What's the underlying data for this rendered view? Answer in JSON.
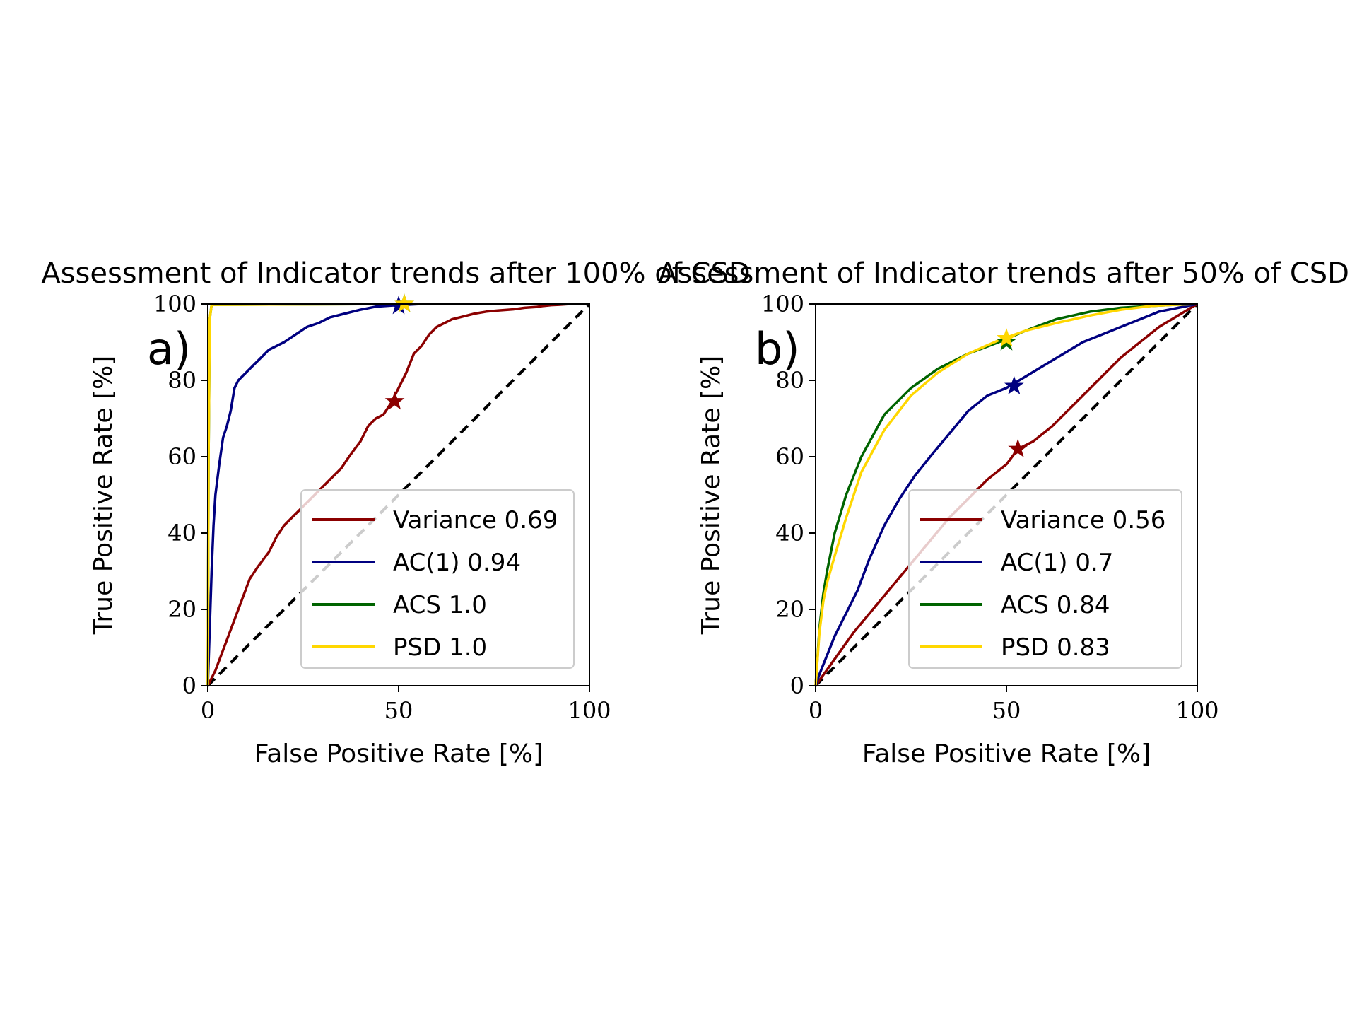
{
  "chart_data": [
    {
      "type": "line",
      "panel_label": "a)",
      "title": "Assessment of Indicator trends after 100% of CSD",
      "xlabel": "False Positive Rate [%]",
      "ylabel": "True Positive Rate [%]",
      "xlim": [
        0,
        100
      ],
      "ylim": [
        0,
        100
      ],
      "xticks": [
        "0",
        "50",
        "100"
      ],
      "yticks": [
        "0",
        "20",
        "40",
        "60",
        "80",
        "100"
      ],
      "grid": false,
      "legend_position": "lower-right",
      "diagonal": true,
      "series": [
        {
          "name": "Variance 0.69",
          "color": "#8b0000",
          "x": [
            0,
            2,
            5,
            8,
            11,
            13,
            16,
            18,
            20,
            22,
            24,
            25,
            27,
            30,
            33,
            35,
            37,
            40,
            42,
            44,
            46,
            48,
            50,
            52,
            54,
            56,
            58,
            60,
            62,
            64,
            66,
            68,
            70,
            73,
            76,
            80,
            83,
            86,
            88,
            90,
            92,
            95,
            100
          ],
          "y": [
            0,
            4,
            12,
            20,
            28,
            31,
            35,
            39,
            42,
            44,
            46,
            47,
            49,
            52,
            55,
            57,
            60,
            64,
            68,
            70,
            71,
            74,
            78,
            82,
            87,
            89,
            92,
            94,
            95,
            96,
            96.5,
            97,
            97.5,
            98,
            98.3,
            98.6,
            99,
            99.2,
            99.5,
            99.7,
            99.8,
            100,
            100
          ],
          "marker": {
            "x": 49,
            "y": 74.5
          }
        },
        {
          "name": "AC(1) 0.94",
          "color": "#000080",
          "x": [
            0,
            0.5,
            1,
            1.5,
            2,
            3,
            4,
            5,
            6,
            7,
            8,
            10,
            12,
            14,
            16,
            18,
            20,
            23,
            26,
            29,
            32,
            36,
            40,
            44,
            48,
            52,
            56,
            60,
            70,
            80,
            90,
            100
          ],
          "y": [
            0,
            15,
            30,
            42,
            50,
            58,
            65,
            68,
            72,
            78,
            80,
            82,
            84,
            86,
            88,
            89,
            90,
            92,
            94,
            95,
            96.5,
            97.5,
            98.5,
            99.3,
            99.6,
            99.8,
            100,
            100,
            100,
            100,
            100,
            100
          ],
          "marker": {
            "x": 50,
            "y": 99.5
          }
        },
        {
          "name": "ACS 1.0",
          "color": "#006400",
          "x": [
            0,
            0.2,
            0.5,
            1,
            50,
            100
          ],
          "y": [
            0,
            60,
            96,
            99.8,
            100,
            100
          ],
          "marker": {
            "x": 51.5,
            "y": 100
          }
        },
        {
          "name": "PSD 1.0",
          "color": "#ffd700",
          "x": [
            0,
            0.2,
            0.5,
            1,
            50,
            100
          ],
          "y": [
            0,
            60,
            96,
            99.8,
            100,
            100
          ],
          "marker": {
            "x": 51.5,
            "y": 100
          }
        }
      ]
    },
    {
      "type": "line",
      "panel_label": "b)",
      "title": "Assessment of Indicator trends after 50% of CSD",
      "xlabel": "False Positive Rate [%]",
      "ylabel": "True Positive Rate [%]",
      "xlim": [
        0,
        100
      ],
      "ylim": [
        0,
        100
      ],
      "xticks": [
        "0",
        "50",
        "100"
      ],
      "yticks": [
        "0",
        "20",
        "40",
        "60",
        "80",
        "100"
      ],
      "grid": false,
      "legend_position": "lower-right",
      "diagonal": true,
      "series": [
        {
          "name": "Variance 0.56",
          "color": "#8b0000",
          "x": [
            0,
            5,
            10,
            15,
            20,
            25,
            30,
            35,
            40,
            45,
            50,
            53,
            57,
            62,
            66,
            70,
            75,
            80,
            85,
            90,
            95,
            100
          ],
          "y": [
            0,
            7,
            14,
            20,
            26,
            32,
            38,
            44,
            49,
            54,
            58,
            62,
            64,
            68,
            72,
            76,
            81,
            86,
            90,
            94,
            97,
            100
          ],
          "marker": {
            "x": 53,
            "y": 62
          }
        },
        {
          "name": "AC(1) 0.7",
          "color": "#000080",
          "x": [
            0,
            1,
            3,
            5,
            8,
            11,
            14,
            18,
            22,
            26,
            30,
            35,
            40,
            45,
            50,
            55,
            60,
            65,
            70,
            75,
            80,
            85,
            90,
            95,
            100
          ],
          "y": [
            0,
            3,
            8,
            13,
            19,
            25,
            33,
            42,
            49,
            55,
            60,
            66,
            72,
            76,
            78,
            81,
            84,
            87,
            90,
            92,
            94,
            96,
            98,
            99,
            100
          ],
          "marker": {
            "x": 52,
            "y": 78.5
          }
        },
        {
          "name": "ACS 0.84",
          "color": "#006400",
          "x": [
            0,
            1,
            2,
            3,
            5,
            8,
            12,
            18,
            25,
            32,
            40,
            48,
            55,
            63,
            72,
            80,
            88,
            94,
            100
          ],
          "y": [
            0,
            15,
            24,
            30,
            40,
            50,
            60,
            71,
            78,
            83,
            87,
            90,
            93,
            96,
            98,
            99,
            99.5,
            99.8,
            100
          ],
          "marker": {
            "x": 50,
            "y": 90
          }
        },
        {
          "name": "PSD 0.83",
          "color": "#ffd700",
          "x": [
            0,
            1,
            2,
            3,
            5,
            8,
            12,
            18,
            25,
            32,
            40,
            48,
            55,
            63,
            72,
            80,
            88,
            94,
            100
          ],
          "y": [
            0,
            14,
            22,
            27,
            34,
            44,
            56,
            67,
            76,
            82,
            87,
            90.5,
            93,
            95,
            97,
            98.5,
            99.5,
            99.8,
            100
          ],
          "marker": {
            "x": 50,
            "y": 91
          }
        }
      ]
    }
  ]
}
